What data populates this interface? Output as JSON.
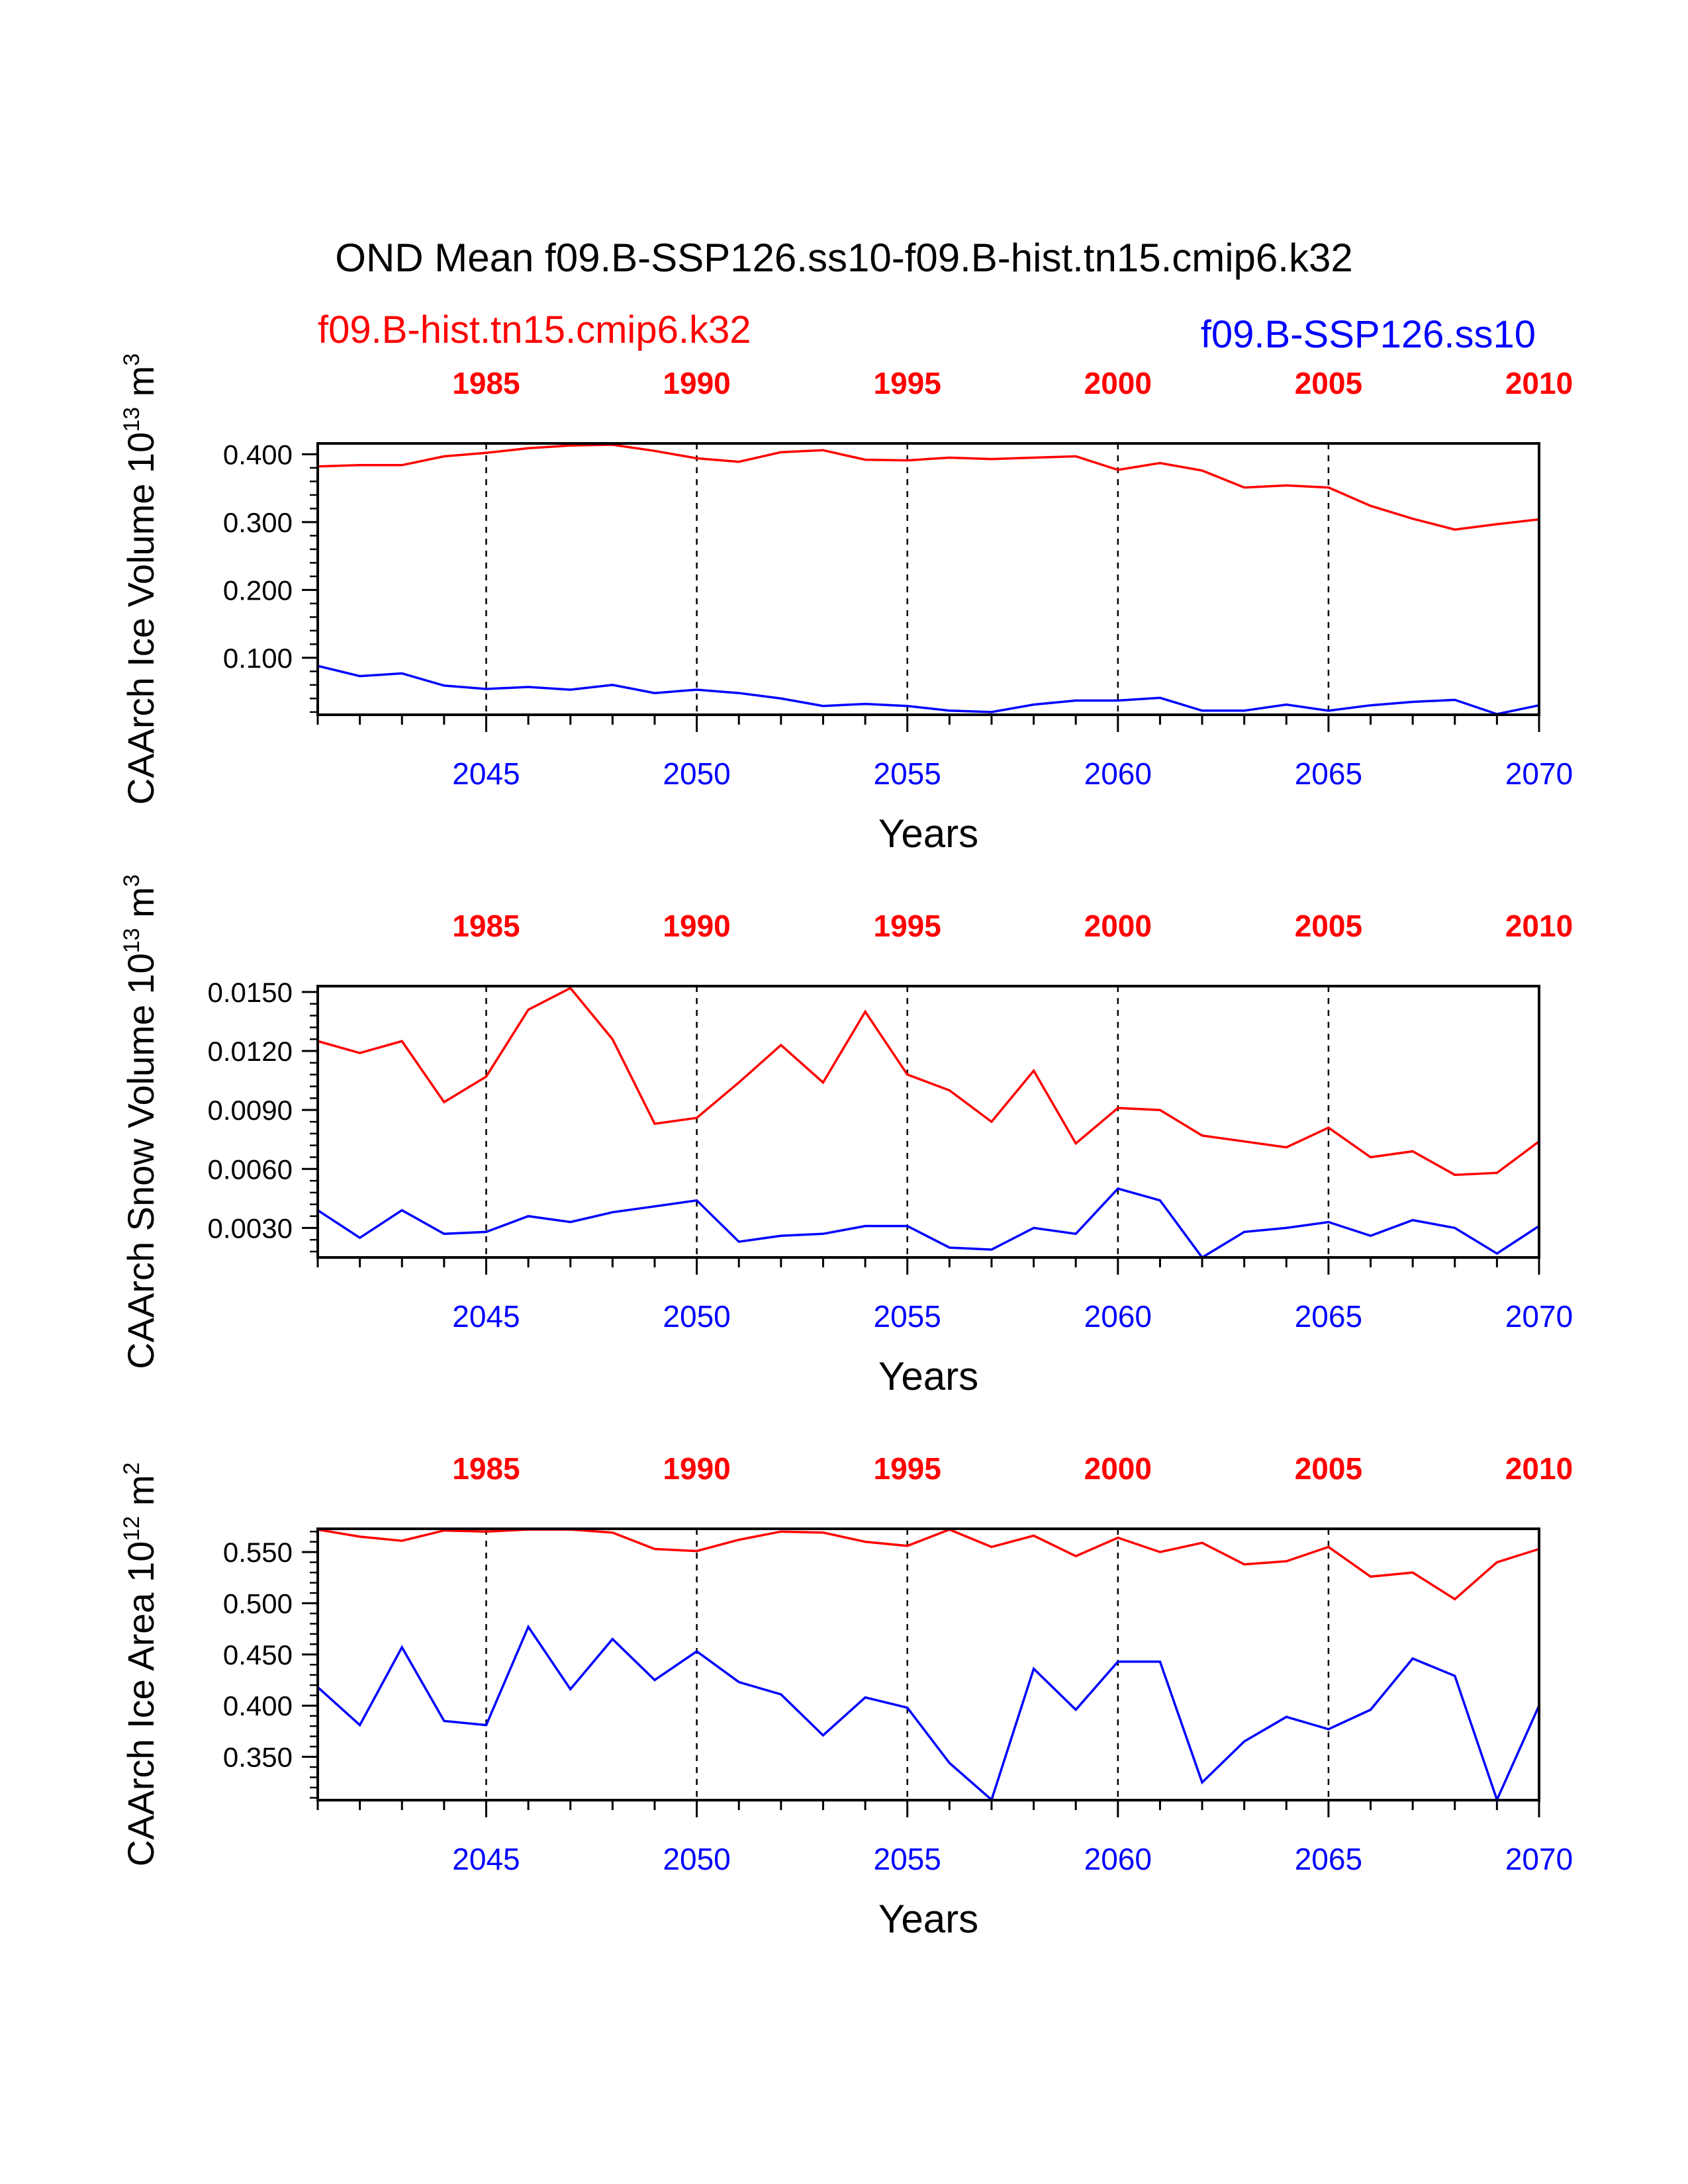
{
  "title": "OND Mean f09.B-SSP126.ss10-f09.B-hist.tn15.cmip6.k32",
  "legend": {
    "hist_name": "f09.B-hist.tn15.cmip6.k32",
    "ssp_name": "f09.B-SSP126.ss10"
  },
  "colors": {
    "hist": "#ff0000",
    "ssp": "#0000ff",
    "axis": "#000000"
  },
  "chart_data": [
    {
      "type": "line",
      "ylabel": {
        "prefix": "CAArch Ice Volume 10",
        "exp": "13",
        "unit": " m",
        "unit_exp": "3"
      },
      "xlabel": "Years",
      "ylim": [
        0.016,
        0.416
      ],
      "yticks": [
        "0.100",
        "0.200",
        "0.300",
        "0.400"
      ],
      "yminor_step": 0.02,
      "bottom_axis": {
        "range": [
          2041,
          2070
        ],
        "ticks": [
          2045,
          2050,
          2055,
          2060,
          2065,
          2070
        ]
      },
      "top_axis": {
        "range": [
          1981,
          2010
        ],
        "ticks": [
          1985,
          1990,
          1995,
          2000,
          2005,
          2010
        ]
      },
      "grid_years": [
        2045,
        2050,
        2055,
        2060,
        2065
      ],
      "series": [
        {
          "name": "f09.B-hist.tn15.cmip6.k32",
          "key": "hist",
          "values": [
            0.382,
            0.384,
            0.384,
            0.397,
            0.402,
            0.409,
            0.413,
            0.414,
            0.405,
            0.394,
            0.389,
            0.403,
            0.406,
            0.392,
            0.391,
            0.395,
            0.393,
            0.395,
            0.397,
            0.377,
            0.387,
            0.376,
            0.351,
            0.354,
            0.351,
            0.324,
            0.305,
            0.289,
            0.297,
            0.304
          ]
        },
        {
          "name": "f09.B-SSP126.ss10",
          "key": "ssp",
          "values": [
            0.088,
            0.073,
            0.077,
            0.059,
            0.054,
            0.057,
            0.053,
            0.06,
            0.048,
            0.053,
            0.048,
            0.04,
            0.029,
            0.032,
            0.029,
            0.022,
            0.02,
            0.031,
            0.037,
            0.037,
            0.041,
            0.022,
            0.022,
            0.031,
            0.022,
            0.03,
            0.035,
            0.038,
            0.017,
            0.03
          ]
        }
      ]
    },
    {
      "type": "line",
      "ylabel": {
        "prefix": "CAArch Snow Volume 10",
        "exp": "13",
        "unit": " m",
        "unit_exp": "3"
      },
      "xlabel": "Years",
      "ylim": [
        0.0015,
        0.0153
      ],
      "yticks": [
        "0.0030",
        "0.0060",
        "0.0090",
        "0.0120",
        "0.0150"
      ],
      "yminor_step": 0.0006,
      "bottom_axis": {
        "range": [
          2041,
          2070
        ],
        "ticks": [
          2045,
          2050,
          2055,
          2060,
          2065,
          2070
        ]
      },
      "top_axis": {
        "range": [
          1981,
          2010
        ],
        "ticks": [
          1985,
          1990,
          1995,
          2000,
          2005,
          2010
        ]
      },
      "grid_years": [
        2045,
        2050,
        2055,
        2060,
        2065
      ],
      "series": [
        {
          "name": "f09.B-hist.tn15.cmip6.k32",
          "key": "hist",
          "values": [
            0.0125,
            0.0119,
            0.0125,
            0.0094,
            0.0107,
            0.0141,
            0.0152,
            0.0126,
            0.0083,
            0.0086,
            0.0104,
            0.0123,
            0.0104,
            0.014,
            0.0108,
            0.01,
            0.0084,
            0.011,
            0.0073,
            0.0091,
            0.009,
            0.0077,
            0.0074,
            0.0071,
            0.0081,
            0.0066,
            0.0069,
            0.0057,
            0.0058,
            0.0074
          ]
        },
        {
          "name": "f09.B-SSP126.ss10",
          "key": "ssp",
          "values": [
            0.0039,
            0.0025,
            0.0039,
            0.0027,
            0.0028,
            0.0036,
            0.0033,
            0.0038,
            0.0041,
            0.0044,
            0.0023,
            0.0026,
            0.0027,
            0.0031,
            0.0031,
            0.002,
            0.0019,
            0.003,
            0.0027,
            0.005,
            0.0044,
            0.0015,
            0.0028,
            0.003,
            0.0033,
            0.0026,
            0.0034,
            0.003,
            0.0017,
            0.0031
          ]
        }
      ]
    },
    {
      "type": "line",
      "ylabel": {
        "prefix": "CAArch Ice Area 10",
        "exp": "12",
        "unit": " m",
        "unit_exp": "2"
      },
      "xlabel": "Years",
      "ylim": [
        0.3077,
        0.5727
      ],
      "yticks": [
        "0.350",
        "0.400",
        "0.450",
        "0.500",
        "0.550"
      ],
      "yminor_step": 0.01,
      "bottom_axis": {
        "range": [
          2041,
          2070
        ],
        "ticks": [
          2045,
          2050,
          2055,
          2060,
          2065,
          2070
        ]
      },
      "top_axis": {
        "range": [
          1981,
          2010
        ],
        "ticks": [
          1985,
          1990,
          1995,
          2000,
          2005,
          2010
        ]
      },
      "grid_years": [
        2045,
        2050,
        2055,
        2060,
        2065
      ],
      "series": [
        {
          "name": "f09.B-hist.tn15.cmip6.k32",
          "key": "hist",
          "values": [
            0.572,
            0.565,
            0.561,
            0.571,
            0.57,
            0.572,
            0.572,
            0.569,
            0.553,
            0.551,
            0.562,
            0.57,
            0.569,
            0.56,
            0.556,
            0.572,
            0.555,
            0.566,
            0.546,
            0.564,
            0.55,
            0.559,
            0.538,
            0.541,
            0.555,
            0.526,
            0.53,
            0.504,
            0.54,
            0.553
          ]
        },
        {
          "name": "f09.B-SSP126.ss10",
          "key": "ssp",
          "values": [
            0.418,
            0.381,
            0.457,
            0.385,
            0.381,
            0.477,
            0.416,
            0.465,
            0.425,
            0.453,
            0.423,
            0.411,
            0.371,
            0.408,
            0.398,
            0.344,
            0.308,
            0.436,
            0.396,
            0.443,
            0.443,
            0.325,
            0.365,
            0.389,
            0.377,
            0.396,
            0.446,
            0.429,
            0.308,
            0.4
          ]
        }
      ]
    }
  ]
}
